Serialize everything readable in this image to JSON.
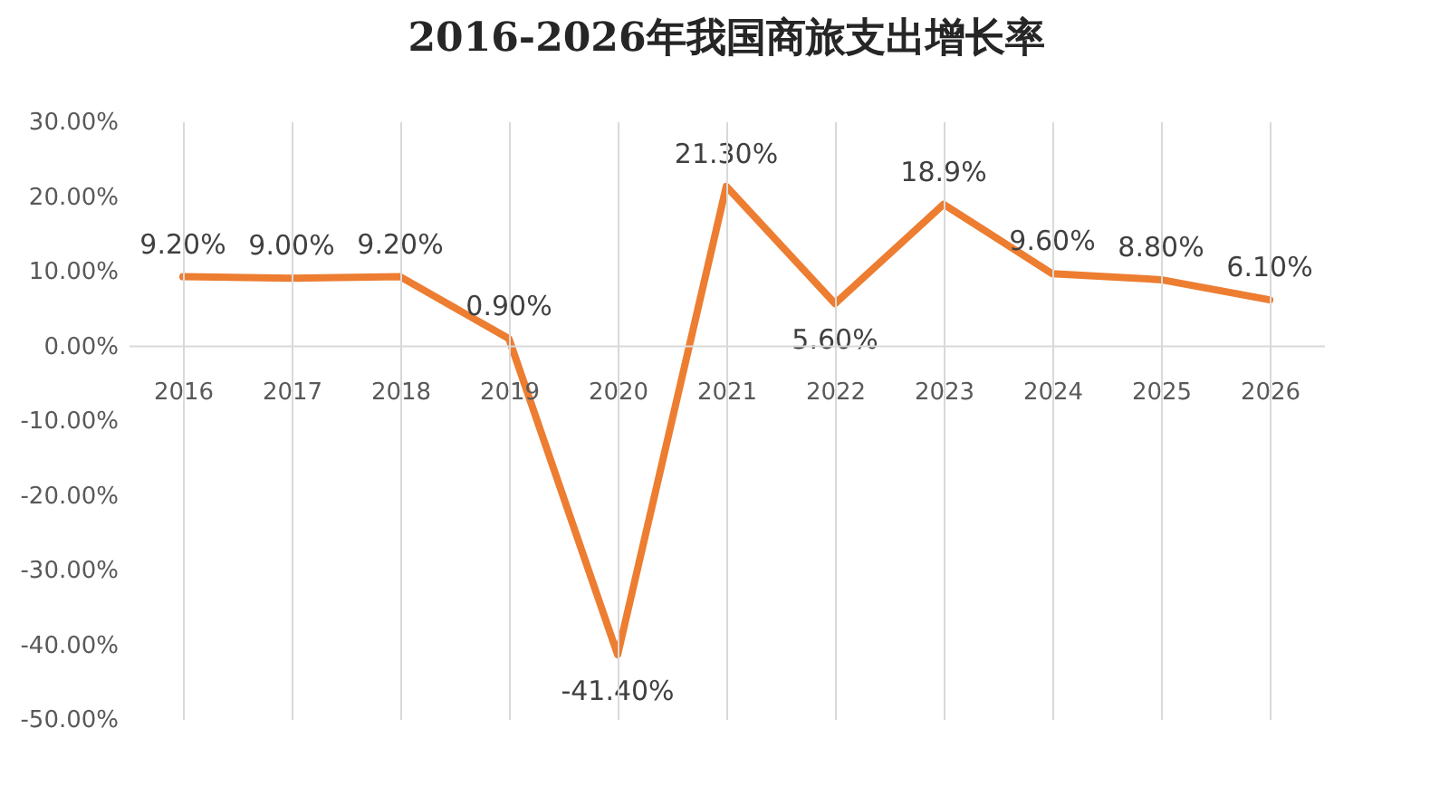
{
  "chart_data": {
    "type": "line",
    "title": "2016-2026年我国商旅支出增长率",
    "categories": [
      "2016",
      "2017",
      "2018",
      "2019",
      "2020",
      "2021",
      "2022",
      "2023",
      "2024",
      "2025",
      "2026"
    ],
    "series": [
      {
        "color": "#ed7d31",
        "values": [
          9.2,
          9.0,
          9.2,
          0.9,
          -41.4,
          21.3,
          5.6,
          18.9,
          9.6,
          8.8,
          6.1
        ],
        "value_labels": [
          "9.20%",
          "9.00%",
          "9.20%",
          "0.90%",
          "-41.40%",
          "21.30%",
          "5.60%",
          "18.9%",
          "9.60%",
          "8.80%",
          "6.10%"
        ]
      }
    ],
    "ylim": [
      -50,
      30
    ],
    "yticks": [
      {
        "value": 30,
        "label": "30.00%"
      },
      {
        "value": 20,
        "label": "20.00%"
      },
      {
        "value": 10,
        "label": "10.00%"
      },
      {
        "value": 0,
        "label": "0.00%"
      },
      {
        "value": -10,
        "label": "-10.00%"
      },
      {
        "value": -20,
        "label": "-20.00%"
      },
      {
        "value": -30,
        "label": "-30.00%"
      },
      {
        "value": -40,
        "label": "-40.00%"
      },
      {
        "value": -50,
        "label": "-50.00%"
      }
    ],
    "grid": "x",
    "marker": "none",
    "line_style": "solid",
    "legend": false
  }
}
